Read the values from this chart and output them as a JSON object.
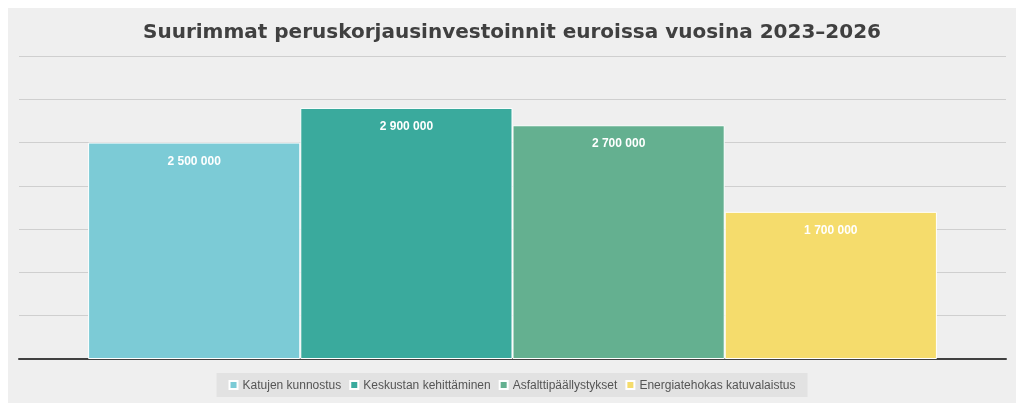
{
  "chart_data": {
    "type": "bar",
    "title": "Suurimmat peruskorjausinvestoinnit euroissa vuosina 2023–2026",
    "categories": [
      null
    ],
    "series": [
      {
        "name": "Katujen kunnostus",
        "color": "#7ccbd6",
        "values": [
          2500000
        ]
      },
      {
        "name": "Keskustan kehittäminen",
        "color": "#3aaa9d",
        "values": [
          2900000
        ]
      },
      {
        "name": "Asfalttipäällystykset",
        "color": "#64b090",
        "values": [
          2700000
        ]
      },
      {
        "name": "Energiatehokas katuvalaistus",
        "color": "#f5dc6c",
        "values": [
          1700000
        ]
      }
    ],
    "ylim": [
      0,
      3500000
    ],
    "yticks": [
      {
        "value": 0,
        "label": null
      },
      {
        "value": 500000,
        "label": null
      },
      {
        "value": 1000000,
        "label": null
      },
      {
        "value": 1500000,
        "label": null
      },
      {
        "value": 2000000,
        "label": null
      },
      {
        "value": 2500000,
        "label": null
      },
      {
        "value": 3000000,
        "label": null
      },
      {
        "value": 3500000,
        "label": null
      }
    ],
    "grid": "y",
    "legend": "bottom",
    "data_labels": true
  }
}
